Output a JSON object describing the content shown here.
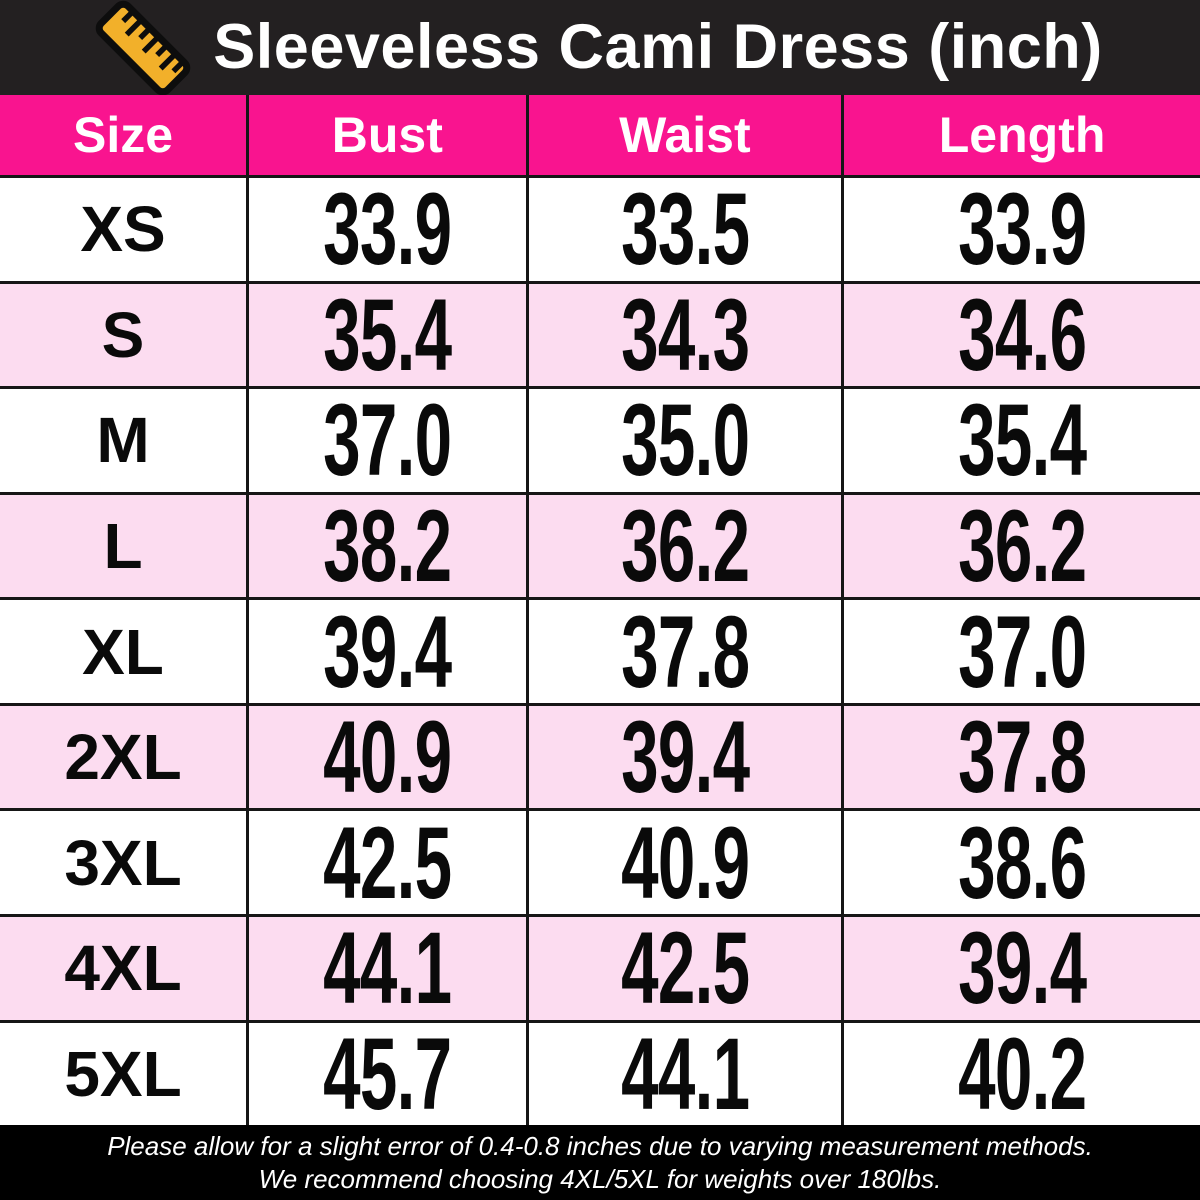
{
  "title": "Sleeveless Cami Dress (inch)",
  "table": {
    "columns": [
      "Size",
      "Bust",
      "Waist",
      "Length"
    ],
    "rows": [
      {
        "size": "XS",
        "bust": "33.9",
        "waist": "33.5",
        "length": "33.9"
      },
      {
        "size": "S",
        "bust": "35.4",
        "waist": "34.3",
        "length": "34.6"
      },
      {
        "size": "M",
        "bust": "37.0",
        "waist": "35.0",
        "length": "35.4"
      },
      {
        "size": "L",
        "bust": "38.2",
        "waist": "36.2",
        "length": "36.2"
      },
      {
        "size": "XL",
        "bust": "39.4",
        "waist": "37.8",
        "length": "37.0"
      },
      {
        "size": "2XL",
        "bust": "40.9",
        "waist": "39.4",
        "length": "37.8"
      },
      {
        "size": "3XL",
        "bust": "42.5",
        "waist": "40.9",
        "length": "38.6"
      },
      {
        "size": "4XL",
        "bust": "44.1",
        "waist": "42.5",
        "length": "39.4"
      },
      {
        "size": "5XL",
        "bust": "45.7",
        "waist": "44.1",
        "length": "40.2"
      }
    ]
  },
  "footer": {
    "line1": "Please allow for a slight error of 0.4-0.8 inches due to varying measurement methods.",
    "line2": "We recommend choosing 4XL/5XL for weights over 180lbs."
  },
  "colors": {
    "title_bar": "#232021",
    "accent_pink": "#f9148f",
    "row_pink": "#fcdcf0",
    "footer_black": "#000000",
    "ruler_gold": "#f2b02a",
    "grid_line": "#161616"
  }
}
